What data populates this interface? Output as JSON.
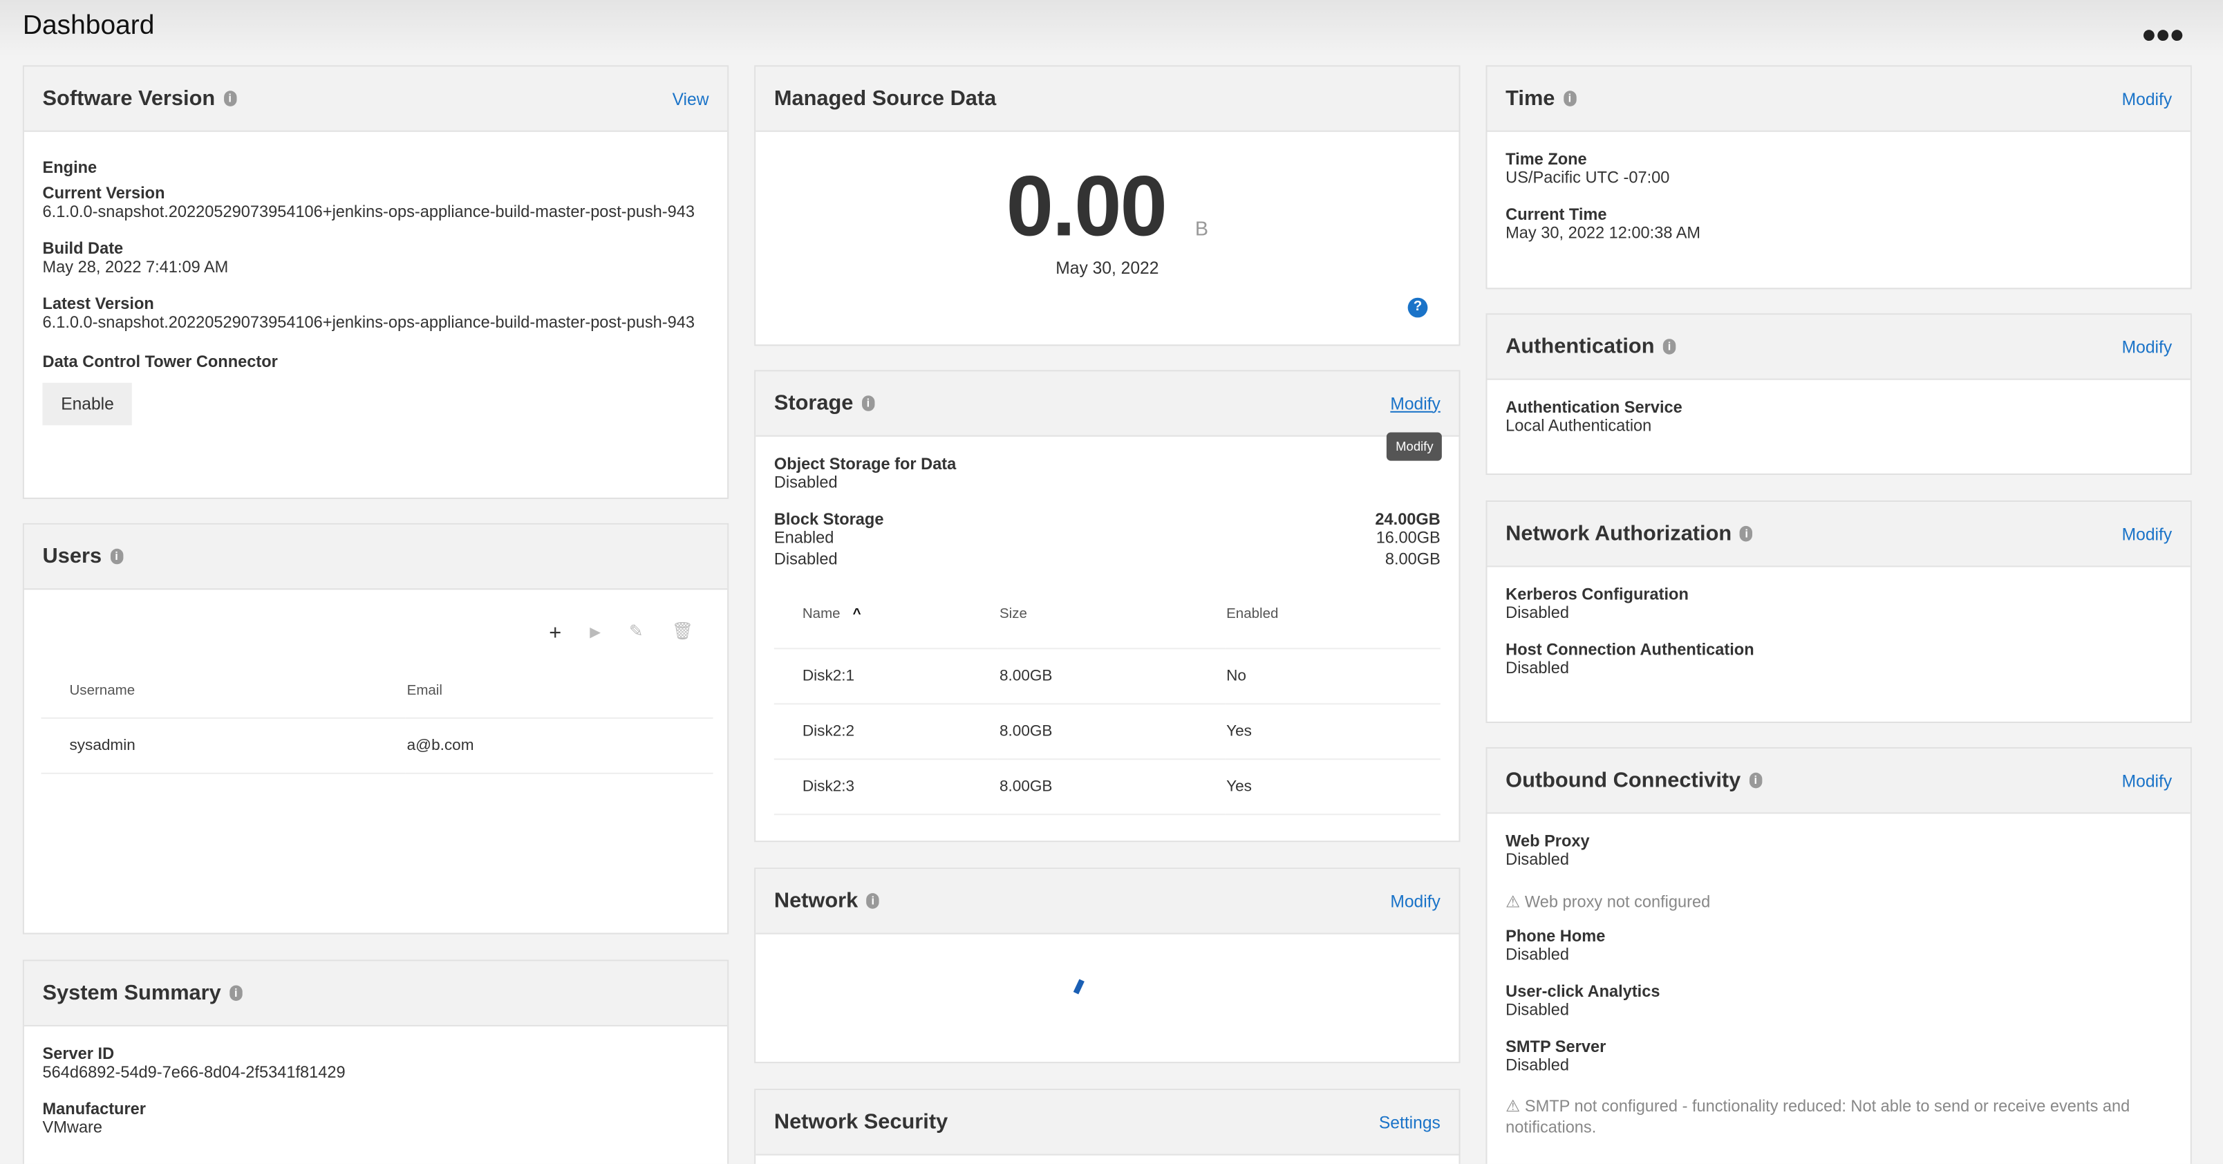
{
  "header": {
    "title": "Dashboard",
    "more_icon": "ellipsis-icon"
  },
  "software": {
    "title": "Software Version",
    "action": "View",
    "engine": "Engine",
    "current_label": "Current Version",
    "current_value": "6.1.0.0-snapshot.20220529073954106+jenkins-ops-appliance-build-master-post-push-943",
    "build_label": "Build Date",
    "build_value": "May 28, 2022 7:41:09 AM",
    "latest_label": "Latest Version",
    "latest_value": "6.1.0.0-snapshot.20220529073954106+jenkins-ops-appliance-build-master-post-push-943",
    "dct_label": "Data Control Tower Connector",
    "enable": "Enable"
  },
  "users": {
    "title": "Users",
    "columns": [
      "Username",
      "Email"
    ],
    "rows": [
      [
        "sysadmin",
        "a@b.com"
      ]
    ]
  },
  "system": {
    "title": "System Summary",
    "server_label": "Server ID",
    "server_value": "564d6892-54d9-7e66-8d04-2f5341f81429",
    "manufacturer_label": "Manufacturer",
    "manufacturer_value": "VMware"
  },
  "managed": {
    "title": "Managed Source Data",
    "value": "0.00",
    "unit": "B",
    "date": "May 30, 2022"
  },
  "storage": {
    "title": "Storage",
    "action": "Modify",
    "tooltip": "Modify",
    "object_label": "Object Storage for Data",
    "object_value": "Disabled",
    "block_label": "Block Storage",
    "block_total": "24.00GB",
    "enabled_label": "Enabled",
    "enabled_value": "16.00GB",
    "disabled_label": "Disabled",
    "disabled_value": "8.00GB",
    "columns": [
      "Name",
      "Size",
      "Enabled"
    ],
    "rows": [
      [
        "Disk2:1",
        "8.00GB",
        "No"
      ],
      [
        "Disk2:2",
        "8.00GB",
        "Yes"
      ],
      [
        "Disk2:3",
        "8.00GB",
        "Yes"
      ]
    ]
  },
  "network": {
    "title": "Network",
    "action": "Modify"
  },
  "netsec": {
    "title": "Network Security",
    "action": "Settings"
  },
  "time": {
    "title": "Time",
    "action": "Modify",
    "tz_label": "Time Zone",
    "tz_value": "US/Pacific UTC -07:00",
    "ct_label": "Current Time",
    "ct_value": "May 30, 2022 12:00:38 AM"
  },
  "auth": {
    "title": "Authentication",
    "action": "Modify",
    "svc_label": "Authentication Service",
    "svc_value": "Local Authentication"
  },
  "netauth": {
    "title": "Network Authorization",
    "action": "Modify",
    "kerb_label": "Kerberos Configuration",
    "kerb_value": "Disabled",
    "host_label": "Host Connection Authentication",
    "host_value": "Disabled"
  },
  "outbound": {
    "title": "Outbound Connectivity",
    "action": "Modify",
    "proxy_label": "Web Proxy",
    "proxy_value": "Disabled",
    "proxy_warn": "Web proxy not configured",
    "phone_label": "Phone Home",
    "phone_value": "Disabled",
    "uca_label": "User-click Analytics",
    "uca_value": "Disabled",
    "smtp_label": "SMTP Server",
    "smtp_value": "Disabled",
    "smtp_warn": "SMTP not configured - functionality reduced: Not able to send or receive events and notifications."
  },
  "colors": {
    "link": "#1a73c8",
    "header_bg": "#f2f2f2"
  }
}
